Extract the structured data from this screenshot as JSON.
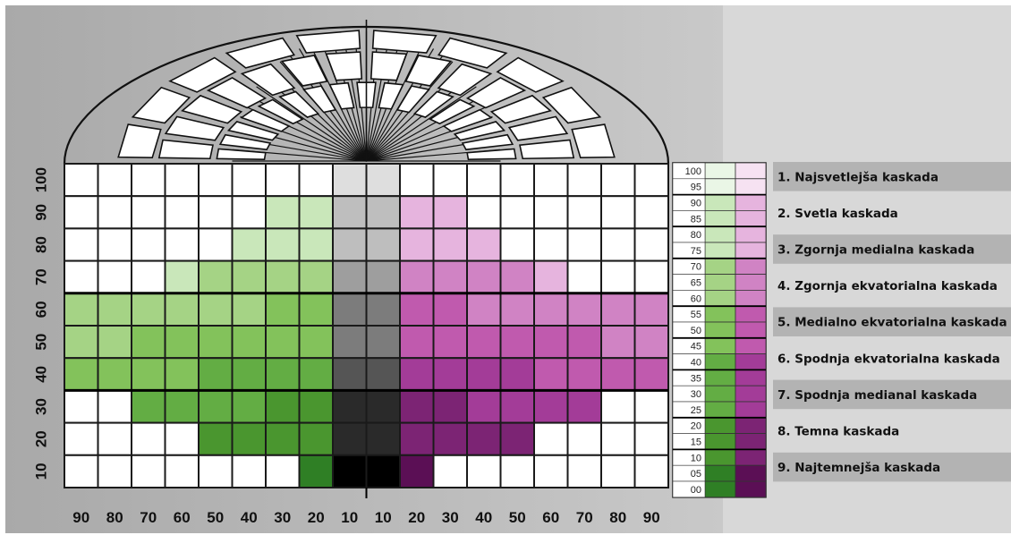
{
  "colors": {
    "green_levels": [
      "#2f7f25",
      "#4a962f",
      "#63ad44",
      "#83c25b",
      "#a5d385",
      "#c9e7ba",
      "#eaf6e6"
    ],
    "magenta_levels": [
      "#5b0f55",
      "#7c2474",
      "#a33c98",
      "#c05aae",
      "#d083c4",
      "#e6b4de",
      "#f6e2f2"
    ],
    "gray_levels": [
      "#000000",
      "#2a2a2a",
      "#555555",
      "#7c7c7c",
      "#9e9e9e",
      "#bebebe",
      "#dedede"
    ]
  },
  "diagram": {
    "y_axis": [
      "100",
      "90",
      "80",
      "70",
      "60",
      "50",
      "40",
      "30",
      "20",
      "10"
    ],
    "x_axis": [
      "90",
      "80",
      "70",
      "60",
      "50",
      "40",
      "30",
      "20",
      "10",
      "10",
      "20",
      "30",
      "40",
      "50",
      "60",
      "70",
      "80",
      "90"
    ],
    "rows": [
      {
        "value": "100",
        "left_count": 0,
        "right_count": 0
      },
      {
        "value": "90",
        "left_count": 2,
        "right_count": 2
      },
      {
        "value": "80",
        "left_count": 3,
        "right_count": 3
      },
      {
        "value": "70",
        "left_count": 5,
        "right_count": 5
      },
      {
        "value": "60",
        "left_count": 8,
        "right_count": 8
      },
      {
        "value": "50",
        "left_count": 9,
        "right_count": 9
      },
      {
        "value": "40",
        "left_count": 8,
        "right_count": 8
      },
      {
        "value": "30",
        "left_count": 6,
        "right_count": 6
      },
      {
        "value": "20",
        "left_count": 4,
        "right_count": 4
      },
      {
        "value": "10",
        "left_count": 1,
        "right_count": 1
      }
    ]
  },
  "scale": {
    "values": [
      "100",
      "95",
      "90",
      "85",
      "80",
      "75",
      "70",
      "65",
      "60",
      "55",
      "50",
      "45",
      "40",
      "35",
      "30",
      "25",
      "20",
      "15",
      "10",
      "05",
      "00"
    ]
  },
  "legend": [
    {
      "label": "1. Najsvetlejša kaskada"
    },
    {
      "label": "2. Svetla kaskada"
    },
    {
      "label": "3. Zgornja medialna kaskada"
    },
    {
      "label": "4. Zgornja ekvatorialna kaskada"
    },
    {
      "label": "5. Medialno ekvatorialna kaskada"
    },
    {
      "label": "6. Spodnja ekvatorialna kaskada"
    },
    {
      "label": "7. Spodnja medianal kaskada"
    },
    {
      "label": "8. Temna kaskada"
    },
    {
      "label": "9. Najtemnejša kaskada"
    }
  ]
}
